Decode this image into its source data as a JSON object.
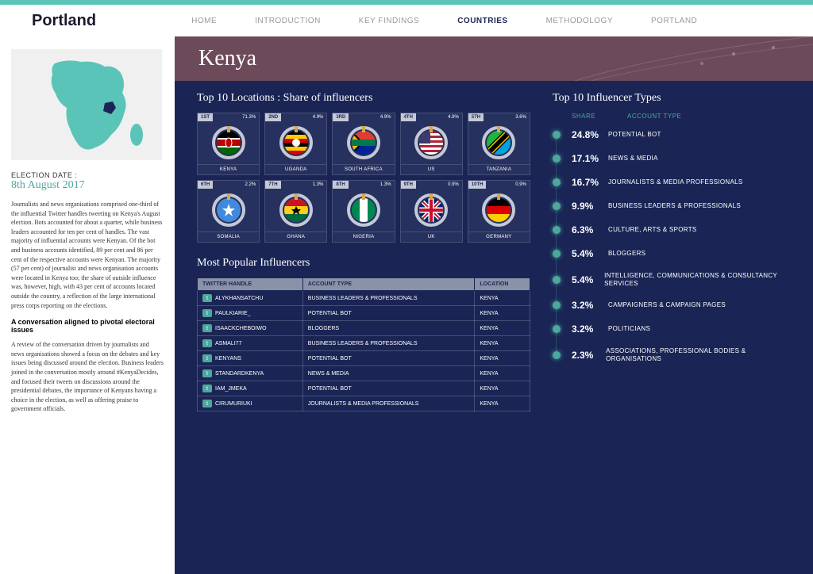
{
  "colors": {
    "navy": "#1a2555",
    "teal": "#4ca89c",
    "banner": "#6d4a5a",
    "topbar": "#5bc4b8",
    "ring": "#c5c9d6",
    "table_header": "#8a92a8"
  },
  "logo": "Portland",
  "nav": [
    "HOME",
    "INTRODUCTION",
    "KEY FINDINGS",
    "COUNTRIES",
    "METHODOLOGY",
    "PORTLAND"
  ],
  "nav_active_index": 3,
  "banner_title": "Kenya",
  "sidebar": {
    "election_label": "ELECTION DATE :",
    "election_date": "8th August 2017",
    "para1": "Journalists and news organisations comprised one-third of the influential Twitter handles tweeting on Kenya's August election. Bots accounted for about a quarter, while business leaders accounted for ten per cent of handles. The vast majority of influential accounts were Kenyan. Of the bot and business accounts identified, 89 per cent and 86 per cent of the respective accounts were Kenyan. The majority (57 per cent) of journalist and news organisation accounts were located in Kenya too; the share of outside influence was, however, high, with 43 per cent of accounts located outside the country, a reflection of the large international press corps reporting on the elections.",
    "subhead": "A conversation aligned to pivotal electoral issues",
    "para2": "A review of the conversation driven by journalists and news organisations showed a focus on the debates and key issues being discussed around the election. Business leaders joined in the conversation mostly around #KenyaDecides, and focused their tweets on discussions around the presidential debates, the importance of Kenyans having a choice in the election, as well as offering praise to government officials."
  },
  "locations": {
    "title": "Top 10 Locations : Share of influencers",
    "items": [
      {
        "rank": "1ST",
        "pct": "71.3%",
        "name": "KENYA",
        "flag": "kenya"
      },
      {
        "rank": "2ND",
        "pct": "4.9%",
        "name": "UGANDA",
        "flag": "uganda"
      },
      {
        "rank": "3RD",
        "pct": "4.9%",
        "name": "SOUTH AFRICA",
        "flag": "south_africa"
      },
      {
        "rank": "4TH",
        "pct": "4.9%",
        "name": "US",
        "flag": "us"
      },
      {
        "rank": "5TH",
        "pct": "3.6%",
        "name": "TANZANIA",
        "flag": "tanzania"
      },
      {
        "rank": "6TH",
        "pct": "2.2%",
        "name": "SOMALIA",
        "flag": "somalia"
      },
      {
        "rank": "7TH",
        "pct": "1.3%",
        "name": "GHANA",
        "flag": "ghana"
      },
      {
        "rank": "8TH",
        "pct": "1.3%",
        "name": "NIGERIA",
        "flag": "nigeria"
      },
      {
        "rank": "9TH",
        "pct": "0.9%",
        "name": "UK",
        "flag": "uk"
      },
      {
        "rank": "10TH",
        "pct": "0.9%",
        "name": "GERMANY",
        "flag": "germany"
      }
    ]
  },
  "influencers": {
    "title": "Most Popular Influencers",
    "columns": [
      "TWITTER HANDLE",
      "ACCOUNT TYPE",
      "LOCATION"
    ],
    "rows": [
      [
        "ALYKHANSATCHU",
        "BUSINESS LEADERS & PROFESSIONALS",
        "KENYA"
      ],
      [
        "PAULKIARIE_",
        "POTENTIAL BOT",
        "KENYA"
      ],
      [
        "ISAACKCHEBOIWO",
        "BLOGGERS",
        "KENYA"
      ],
      [
        "ASMALI77",
        "BUSINESS LEADERS & PROFESSIONALS",
        "KENYA"
      ],
      [
        "KENYANS",
        "POTENTIAL BOT",
        "KENYA"
      ],
      [
        "STANDARDKENYA",
        "NEWS & MEDIA",
        "KENYA"
      ],
      [
        "IAM_JMEKA",
        "POTENTIAL BOT",
        "KENYA"
      ],
      [
        "CIRUMURIUKI",
        "JOURNALISTS & MEDIA PROFESSIONALS",
        "KENYA"
      ]
    ]
  },
  "types": {
    "title": "Top 10 Influencer Types",
    "header_share": "SHARE",
    "header_type": "ACCOUNT TYPE",
    "items": [
      {
        "share": "24.8%",
        "label": "POTENTIAL BOT"
      },
      {
        "share": "17.1%",
        "label": "NEWS & MEDIA"
      },
      {
        "share": "16.7%",
        "label": "JOURNALISTS & MEDIA PROFESSIONALS"
      },
      {
        "share": "9.9%",
        "label": "BUSINESS LEADERS & PROFESSIONALS"
      },
      {
        "share": "6.3%",
        "label": "CULTURE, ARTS & SPORTS"
      },
      {
        "share": "5.4%",
        "label": "BLOGGERS"
      },
      {
        "share": "5.4%",
        "label": "INTELLIGENCE, COMMUNICATIONS & CONSULTANCY SERVICES"
      },
      {
        "share": "3.2%",
        "label": "CAMPAIGNERS & CAMPAIGN PAGES"
      },
      {
        "share": "3.2%",
        "label": "POLITICIANS"
      },
      {
        "share": "2.3%",
        "label": "ASSOCIATIONS, PROFESSIONAL BODIES & ORGANISATIONS"
      }
    ]
  },
  "flag_svgs": {
    "kenya": "<svg viewBox='0 0 30 30'><rect width='30' height='10' fill='#000'/><rect y='10' width='30' height='10' fill='#b00'/><rect y='20' width='30' height='10' fill='#060'/><rect y='9' width='30' height='2' fill='#fff'/><rect y='19' width='30' height='2' fill='#fff'/><ellipse cx='15' cy='15' rx='4' ry='6' fill='#b00' stroke='#fff'/></svg>",
    "uganda": "<svg viewBox='0 0 30 30'><rect width='30' height='5' fill='#000'/><rect y='5' width='30' height='5' fill='#fc0'/><rect y='10' width='30' height='5' fill='#d00'/><rect y='15' width='30' height='5' fill='#000'/><rect y='20' width='30' height='5' fill='#fc0'/><rect y='25' width='30' height='5' fill='#d00'/><circle cx='15' cy='15' r='5' fill='#fff'/></svg>",
    "south_africa": "<svg viewBox='0 0 30 30'><rect width='30' height='15' fill='#e03c31'/><rect y='15' width='30' height='15' fill='#002395'/><path d='M0 0 L15 15 L0 30 Z' fill='#000'/><path d='M0 3 L12 15 L0 27 Z' fill='#ffb612'/><rect y='11' width='30' height='8' fill='#007a4d'/><rect y='13' width='30' height='4' fill='#fff' opacity='0'/></svg>",
    "us": "<svg viewBox='0 0 30 30'><rect width='30' height='30' fill='#b22234'/><rect y='3' width='30' height='3' fill='#fff'/><rect y='9' width='30' height='3' fill='#fff'/><rect y='15' width='30' height='3' fill='#fff'/><rect y='21' width='30' height='3' fill='#fff'/><rect y='27' width='30' height='3' fill='#fff'/><rect width='14' height='16' fill='#3c3b6e'/></svg>",
    "tanzania": "<svg viewBox='0 0 30 30'><path d='M0 0 L30 0 L0 30 Z' fill='#1eb53a'/><path d='M30 30 L0 30 L30 0 Z' fill='#00a3dd'/><path d='M0 22 L22 0 L30 0 L30 8 L8 30 L0 30 Z' fill='#000'/><path d='M0 24 L24 0 L26 0 L0 26 Z' fill='#fcd116'/><path d='M4 30 L30 4 L30 6 L6 30 Z' fill='#fcd116'/></svg>",
    "somalia": "<svg viewBox='0 0 30 30'><rect width='30' height='30' fill='#4189dd'/><polygon points='15,7 17,13 23,13 18,17 20,23 15,19 10,23 12,17 7,13 13,13' fill='#fff'/></svg>",
    "ghana": "<svg viewBox='0 0 30 30'><rect width='30' height='10' fill='#ce1126'/><rect y='10' width='30' height='10' fill='#fcd116'/><rect y='20' width='30' height='10' fill='#006b3f'/><polygon points='15,10 17,14 21,14 18,17 19,21 15,18 11,21 12,17 9,14 13,14' fill='#000'/></svg>",
    "nigeria": "<svg viewBox='0 0 30 30'><rect width='10' height='30' fill='#008751'/><rect x='10' width='10' height='30' fill='#fff'/><rect x='20' width='10' height='30' fill='#008751'/></svg>",
    "uk": "<svg viewBox='0 0 30 30'><rect width='30' height='30' fill='#012169'/><path d='M0 0 L30 30 M30 0 L0 30' stroke='#fff' stroke-width='5'/><path d='M0 0 L30 30 M30 0 L0 30' stroke='#c8102e' stroke-width='2'/><path d='M15 0 V30 M0 15 H30' stroke='#fff' stroke-width='7'/><path d='M15 0 V30 M0 15 H30' stroke='#c8102e' stroke-width='4'/></svg>",
    "germany": "<svg viewBox='0 0 30 30'><rect width='30' height='10' fill='#000'/><rect y='10' width='30' height='10' fill='#d00'/><rect y='20' width='30' height='10' fill='#ffce00'/></svg>"
  }
}
